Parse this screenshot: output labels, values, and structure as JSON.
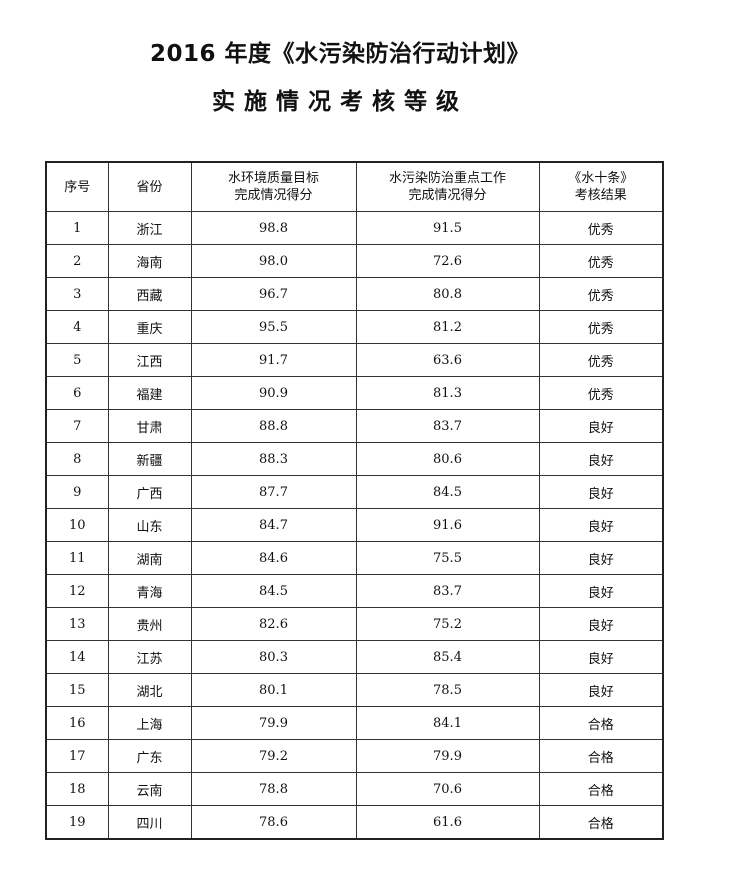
{
  "title": {
    "line1": "2016 年度《水污染防治行动计划》",
    "line2": "实施情况考核等级"
  },
  "table": {
    "headers": [
      "序号",
      "省份",
      "水环境质量目标\n完成情况得分",
      "水污染防治重点工作\n完成情况得分",
      "《水十条》\n考核结果"
    ],
    "rows": [
      [
        "1",
        "浙江",
        "98.8",
        "91.5",
        "优秀"
      ],
      [
        "2",
        "海南",
        "98.0",
        "72.6",
        "优秀"
      ],
      [
        "3",
        "西藏",
        "96.7",
        "80.8",
        "优秀"
      ],
      [
        "4",
        "重庆",
        "95.5",
        "81.2",
        "优秀"
      ],
      [
        "5",
        "江西",
        "91.7",
        "63.6",
        "优秀"
      ],
      [
        "6",
        "福建",
        "90.9",
        "81.3",
        "优秀"
      ],
      [
        "7",
        "甘肃",
        "88.8",
        "83.7",
        "良好"
      ],
      [
        "8",
        "新疆",
        "88.3",
        "80.6",
        "良好"
      ],
      [
        "9",
        "广西",
        "87.7",
        "84.5",
        "良好"
      ],
      [
        "10",
        "山东",
        "84.7",
        "91.6",
        "良好"
      ],
      [
        "11",
        "湖南",
        "84.6",
        "75.5",
        "良好"
      ],
      [
        "12",
        "青海",
        "84.5",
        "83.7",
        "良好"
      ],
      [
        "13",
        "贵州",
        "82.6",
        "75.2",
        "良好"
      ],
      [
        "14",
        "江苏",
        "80.3",
        "85.4",
        "良好"
      ],
      [
        "15",
        "湖北",
        "80.1",
        "78.5",
        "良好"
      ],
      [
        "16",
        "上海",
        "79.9",
        "84.1",
        "合格"
      ],
      [
        "17",
        "广东",
        "79.2",
        "79.9",
        "合格"
      ],
      [
        "18",
        "云南",
        "78.8",
        "70.6",
        "合格"
      ],
      [
        "19",
        "四川",
        "78.6",
        "61.6",
        "合格"
      ]
    ]
  }
}
